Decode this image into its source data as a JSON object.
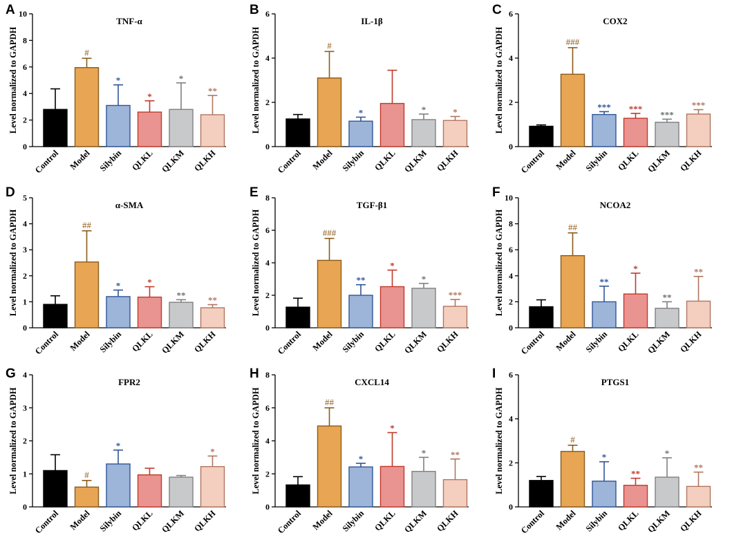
{
  "colors": {
    "Control": {
      "fill": "#000000",
      "stroke": "#000000"
    },
    "Model": {
      "fill": "#E8A553",
      "stroke": "#8B5A1B"
    },
    "Silybin": {
      "fill": "#9CB5D8",
      "stroke": "#2F5597"
    },
    "QLKL": {
      "fill": "#E99490",
      "stroke": "#C0392B"
    },
    "QLKM": {
      "fill": "#C8C9CB",
      "stroke": "#7F8082"
    },
    "QLKH": {
      "fill": "#F4CFC0",
      "stroke": "#B07560"
    },
    "sig_silybin": "#2F5597",
    "sig_model": "#8B5A1B",
    "sig_qlkl": "#C0392B",
    "sig_qlkh": "#B07560",
    "sig_qlkm": "#6D6E70"
  },
  "chart_data": [
    {
      "panel": "A",
      "type": "bar",
      "title": "TNF-α",
      "ylabel": "Level normalized to GAPDH",
      "categories": [
        "Control",
        "Model",
        "Silybin",
        "QLKL",
        "QLKM",
        "QLKH"
      ],
      "ylim": [
        0,
        10
      ],
      "yticks": [
        0,
        2,
        4,
        6,
        8,
        10
      ],
      "values": [
        2.8,
        5.95,
        3.1,
        2.6,
        2.8,
        2.4
      ],
      "errors": [
        1.55,
        0.7,
        1.55,
        0.85,
        2.0,
        1.45
      ],
      "significance": [
        "",
        "#",
        "*",
        "*",
        "*",
        "**"
      ]
    },
    {
      "panel": "B",
      "type": "bar",
      "title": "IL-1β",
      "ylabel": "Level normalized to GAPDH",
      "categories": [
        "Control",
        "Model",
        "Silybin",
        "QLKL",
        "QLKM",
        "QLKH"
      ],
      "ylim": [
        0,
        6
      ],
      "yticks": [
        0,
        2,
        4,
        6
      ],
      "values": [
        1.25,
        3.1,
        1.15,
        1.95,
        1.22,
        1.18
      ],
      "errors": [
        0.2,
        1.2,
        0.18,
        1.5,
        0.25,
        0.18
      ],
      "significance": [
        "",
        "#",
        "*",
        "",
        "*",
        "*"
      ]
    },
    {
      "panel": "C",
      "type": "bar",
      "title": "COX2",
      "ylabel": "Level normalized to GAPDH",
      "categories": [
        "Control",
        "Model",
        "Silybin",
        "QLKL",
        "QLKM",
        "QLKH"
      ],
      "ylim": [
        0,
        6
      ],
      "yticks": [
        0,
        2,
        4,
        6
      ],
      "values": [
        0.92,
        3.27,
        1.45,
        1.28,
        1.1,
        1.47
      ],
      "errors": [
        0.06,
        1.2,
        0.13,
        0.22,
        0.14,
        0.2
      ],
      "significance": [
        "",
        "###",
        "***",
        "***",
        "***",
        "***"
      ]
    },
    {
      "panel": "D",
      "type": "bar",
      "title": "α-SMA",
      "ylabel": "Level normalized to GAPDH",
      "categories": [
        "Control",
        "Model",
        "Silybin",
        "QLKL",
        "QLKM",
        "QLKH"
      ],
      "ylim": [
        0,
        5
      ],
      "yticks": [
        0,
        1,
        2,
        3,
        4,
        5
      ],
      "values": [
        0.9,
        2.53,
        1.2,
        1.18,
        0.98,
        0.77
      ],
      "errors": [
        0.33,
        1.2,
        0.25,
        0.4,
        0.1,
        0.12
      ],
      "significance": [
        "",
        "##",
        "*",
        "*",
        "**",
        "**"
      ]
    },
    {
      "panel": "E",
      "type": "bar",
      "title": "TGF-β1",
      "ylabel": "Level normalized to GAPDH",
      "categories": [
        "Control",
        "Model",
        "Silybin",
        "QLKL",
        "QLKM",
        "QLKH"
      ],
      "ylim": [
        0,
        8
      ],
      "yticks": [
        0,
        2,
        4,
        6,
        8
      ],
      "values": [
        1.27,
        4.15,
        2.0,
        2.53,
        2.43,
        1.32
      ],
      "errors": [
        0.55,
        1.35,
        0.65,
        1.02,
        0.3,
        0.42
      ],
      "significance": [
        "",
        "###",
        "**",
        "*",
        "*",
        "***"
      ]
    },
    {
      "panel": "F",
      "type": "bar",
      "title": "NCOA2",
      "ylabel": "Level normalized to GAPDH",
      "categories": [
        "Control",
        "Model",
        "Silybin",
        "QLKL",
        "QLKM",
        "QLKH"
      ],
      "ylim": [
        0,
        10
      ],
      "yticks": [
        0,
        2,
        4,
        6,
        8,
        10
      ],
      "values": [
        1.62,
        5.55,
        2.0,
        2.6,
        1.5,
        2.05
      ],
      "errors": [
        0.53,
        1.75,
        1.2,
        1.6,
        0.5,
        1.9
      ],
      "significance": [
        "",
        "##",
        "**",
        "*",
        "**",
        "**"
      ]
    },
    {
      "panel": "G",
      "type": "bar",
      "title": "FPR2",
      "ylabel": "Level normalized to GAPDH",
      "categories": [
        "Control",
        "Model",
        "Silybin",
        "QLKL",
        "QLKM",
        "QLKH"
      ],
      "ylim": [
        0,
        4
      ],
      "yticks": [
        0,
        1,
        2,
        3,
        4
      ],
      "values": [
        1.1,
        0.6,
        1.3,
        0.97,
        0.9,
        1.22
      ],
      "errors": [
        0.48,
        0.2,
        0.42,
        0.2,
        0.05,
        0.32
      ],
      "significance": [
        "",
        "#",
        "*",
        "",
        "",
        "*"
      ]
    },
    {
      "panel": "H",
      "type": "bar",
      "title": "CXCL14",
      "ylabel": "Level normalized to GAPDH",
      "categories": [
        "Control",
        "Model",
        "Silybin",
        "QLKL",
        "QLKM",
        "QLKH"
      ],
      "ylim": [
        0,
        8
      ],
      "yticks": [
        0,
        2,
        4,
        6,
        8
      ],
      "values": [
        1.33,
        4.9,
        2.42,
        2.45,
        2.15,
        1.65
      ],
      "errors": [
        0.5,
        1.1,
        0.22,
        2.05,
        0.85,
        1.25
      ],
      "significance": [
        "",
        "##",
        "*",
        "*",
        "*",
        "**"
      ]
    },
    {
      "panel": "I",
      "type": "bar",
      "title": "PTGS1",
      "ylabel": "Level normalized to GAPDH",
      "categories": [
        "Control",
        "Model",
        "Silybin",
        "QLKL",
        "QLKM",
        "QLKH"
      ],
      "ylim": [
        0,
        6
      ],
      "yticks": [
        0,
        2,
        4,
        6
      ],
      "values": [
        1.2,
        2.52,
        1.17,
        0.98,
        1.35,
        0.93
      ],
      "errors": [
        0.18,
        0.28,
        0.88,
        0.32,
        0.88,
        0.65
      ],
      "significance": [
        "",
        "#",
        "*",
        "**",
        "*",
        "**"
      ]
    }
  ]
}
